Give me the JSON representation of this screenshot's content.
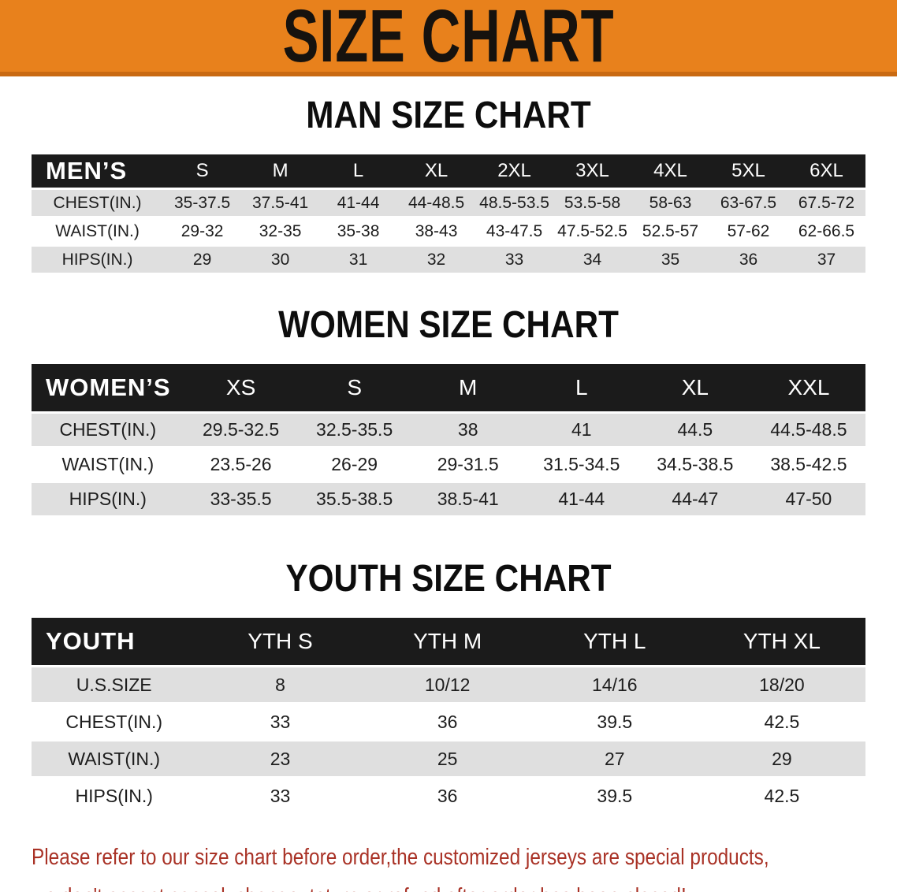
{
  "banner": {
    "title": "SIZE CHART"
  },
  "colors": {
    "banner_bg": "#E8811C",
    "banner_text": "#16120E",
    "table_header_bg": "#1B1B1B",
    "table_header_text": "#FFFFFF",
    "row_gray": "#DFDFDF",
    "row_white": "#FFFFFF",
    "note_red": "#A93226"
  },
  "tables": {
    "men": {
      "title": "MAN SIZE CHART",
      "header_label": "MEN’S",
      "sizes": [
        "S",
        "M",
        "L",
        "XL",
        "2XL",
        "3XL",
        "4XL",
        "5XL",
        "6XL"
      ],
      "rows": [
        {
          "label": "CHEST(IN.)",
          "values": [
            "35-37.5",
            "37.5-41",
            "41-44",
            "44-48.5",
            "48.5-53.5",
            "53.5-58",
            "58-63",
            "63-67.5",
            "67.5-72"
          ]
        },
        {
          "label": "WAIST(IN.)",
          "values": [
            "29-32",
            "32-35",
            "35-38",
            "38-43",
            "43-47.5",
            "47.5-52.5",
            "52.5-57",
            "57-62",
            "62-66.5"
          ]
        },
        {
          "label": "HIPS(IN.)",
          "values": [
            "29",
            "30",
            "31",
            "32",
            "33",
            "34",
            "35",
            "36",
            "37"
          ]
        }
      ]
    },
    "women": {
      "title": "WOMEN SIZE CHART",
      "header_label": "WOMEN’S",
      "sizes": [
        "XS",
        "S",
        "M",
        "L",
        "XL",
        "XXL"
      ],
      "rows": [
        {
          "label": "CHEST(IN.)",
          "values": [
            "29.5-32.5",
            "32.5-35.5",
            "38",
            "41",
            "44.5",
            "44.5-48.5"
          ]
        },
        {
          "label": "WAIST(IN.)",
          "values": [
            "23.5-26",
            "26-29",
            "29-31.5",
            "31.5-34.5",
            "34.5-38.5",
            "38.5-42.5"
          ]
        },
        {
          "label": "HIPS(IN.)",
          "values": [
            "33-35.5",
            "35.5-38.5",
            "38.5-41",
            "41-44",
            "44-47",
            "47-50"
          ]
        }
      ]
    },
    "youth": {
      "title": "YOUTH SIZE CHART",
      "header_label": "YOUTH",
      "sizes": [
        "YTH S",
        "YTH M",
        "YTH L",
        "YTH XL"
      ],
      "rows": [
        {
          "label": "U.S.SIZE",
          "values": [
            "8",
            "10/12",
            "14/16",
            "18/20"
          ]
        },
        {
          "label": "CHEST(IN.)",
          "values": [
            "33",
            "36",
            "39.5",
            "42.5"
          ]
        },
        {
          "label": "WAIST(IN.)",
          "values": [
            "23",
            "25",
            "27",
            "29"
          ]
        },
        {
          "label": "HIPS(IN.)",
          "values": [
            "33",
            "36",
            "39.5",
            "42.5"
          ]
        }
      ]
    }
  },
  "footer": {
    "line1": "Please refer to our size chart before order,the customized jerseys are special products,",
    "line2": "we don't accept cancel, change, teturn or refund after order has been placed!"
  }
}
